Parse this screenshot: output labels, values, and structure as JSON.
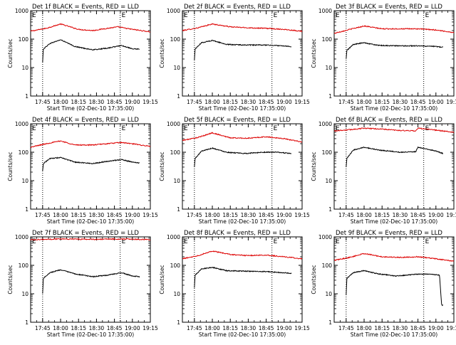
{
  "figure": {
    "xlabel": "Start Time (02-Dec-10 17:35:00)",
    "ylabel": "Counts/sec",
    "x_tick_labels": [
      "17:45",
      "18:00",
      "18:15",
      "18:30",
      "18:45",
      "19:00",
      "19:15"
    ],
    "y_tick_labels": [
      "1",
      "10",
      "100",
      "1000"
    ],
    "corner_marker_left": "E",
    "corner_marker_right": "E",
    "colors": {
      "events": "#000000",
      "lld": "#dd0000",
      "axes": "#000000",
      "background": "#ffffff"
    }
  },
  "chart_data": [
    {
      "type": "line",
      "title": "Det 1f BLACK = Events, RED = LLD",
      "xlabel": "Start Time (02-Dec-10 17:35:00)",
      "ylabel": "Counts/sec",
      "xlim": [
        17.583,
        19.25
      ],
      "ylim": [
        1,
        1000
      ],
      "yscale": "log",
      "markers": [
        17.75,
        18.83
      ],
      "series": [
        {
          "role": "lld",
          "start": 17.583,
          "end": 19.25,
          "points": [
            [
              17.583,
              190
            ],
            [
              17.8,
              240
            ],
            [
              18.0,
              340
            ],
            [
              18.25,
              220
            ],
            [
              18.45,
              200
            ],
            [
              18.6,
              230
            ],
            [
              18.8,
              270
            ],
            [
              18.95,
              230
            ],
            [
              19.25,
              180
            ]
          ]
        },
        {
          "role": "events",
          "start": 17.75,
          "end": 19.1,
          "points": [
            [
              17.75,
              15
            ],
            [
              17.76,
              45
            ],
            [
              17.85,
              70
            ],
            [
              18.0,
              95
            ],
            [
              18.2,
              55
            ],
            [
              18.45,
              42
            ],
            [
              18.65,
              48
            ],
            [
              18.85,
              60
            ],
            [
              19.0,
              45
            ],
            [
              19.1,
              45
            ]
          ]
        }
      ]
    },
    {
      "type": "line",
      "title": "Det 2f BLACK = Events, RED = LLD",
      "xlabel": "Start Time (02-Dec-10 17:35:00)",
      "ylabel": "Counts/sec",
      "xlim": [
        17.583,
        19.25
      ],
      "ylim": [
        1,
        1000
      ],
      "yscale": "log",
      "markers": [
        17.75,
        18.83
      ],
      "series": [
        {
          "role": "lld",
          "start": 17.583,
          "end": 19.25,
          "points": [
            [
              17.583,
              200
            ],
            [
              17.8,
              250
            ],
            [
              18.0,
              340
            ],
            [
              18.25,
              270
            ],
            [
              18.5,
              250
            ],
            [
              18.75,
              240
            ],
            [
              19.0,
              220
            ],
            [
              19.25,
              190
            ]
          ]
        },
        {
          "role": "events",
          "start": 17.75,
          "end": 19.1,
          "points": [
            [
              17.75,
              18
            ],
            [
              17.76,
              45
            ],
            [
              17.85,
              75
            ],
            [
              18.0,
              90
            ],
            [
              18.2,
              65
            ],
            [
              18.5,
              62
            ],
            [
              18.75,
              62
            ],
            [
              19.0,
              58
            ],
            [
              19.1,
              55
            ]
          ]
        }
      ]
    },
    {
      "type": "line",
      "title": "Det 3f BLACK = Events, RED = LLD",
      "xlabel": "Start Time (02-Dec-10 17:35:00)",
      "ylabel": "Counts/sec",
      "xlim": [
        17.583,
        19.25
      ],
      "ylim": [
        1,
        1000
      ],
      "yscale": "log",
      "markers": [
        17.75,
        18.83
      ],
      "series": [
        {
          "role": "lld",
          "start": 17.583,
          "end": 19.25,
          "points": [
            [
              17.583,
              160
            ],
            [
              17.8,
              220
            ],
            [
              18.0,
              290
            ],
            [
              18.25,
              230
            ],
            [
              18.5,
              230
            ],
            [
              18.75,
              230
            ],
            [
              19.0,
              210
            ],
            [
              19.25,
              170
            ]
          ]
        },
        {
          "role": "events",
          "start": 17.75,
          "end": 19.1,
          "points": [
            [
              17.75,
              20
            ],
            [
              17.76,
              40
            ],
            [
              17.85,
              65
            ],
            [
              18.0,
              75
            ],
            [
              18.2,
              60
            ],
            [
              18.5,
              58
            ],
            [
              18.75,
              58
            ],
            [
              19.0,
              55
            ],
            [
              19.1,
              52
            ]
          ]
        }
      ]
    },
    {
      "type": "line",
      "title": "Det 4f BLACK = Events, RED = LLD",
      "xlabel": "Start Time (02-Dec-10 17:35:00)",
      "ylabel": "Counts/sec",
      "xlim": [
        17.583,
        19.25
      ],
      "ylim": [
        1,
        1000
      ],
      "yscale": "log",
      "markers": [
        17.75,
        18.83
      ],
      "series": [
        {
          "role": "lld",
          "start": 17.583,
          "end": 19.25,
          "points": [
            [
              17.583,
              150
            ],
            [
              17.8,
              200
            ],
            [
              18.0,
              250
            ],
            [
              18.2,
              180
            ],
            [
              18.45,
              180
            ],
            [
              18.65,
              200
            ],
            [
              18.85,
              220
            ],
            [
              19.05,
              190
            ],
            [
              19.25,
              160
            ]
          ]
        },
        {
          "role": "events",
          "start": 17.75,
          "end": 19.1,
          "points": [
            [
              17.75,
              22
            ],
            [
              17.76,
              40
            ],
            [
              17.85,
              60
            ],
            [
              18.0,
              65
            ],
            [
              18.2,
              45
            ],
            [
              18.45,
              40
            ],
            [
              18.65,
              48
            ],
            [
              18.85,
              55
            ],
            [
              19.0,
              45
            ],
            [
              19.1,
              42
            ]
          ]
        }
      ]
    },
    {
      "type": "line",
      "title": "Det 5f BLACK = Events, RED = LLD",
      "xlabel": "Start Time (02-Dec-10 17:35:00)",
      "ylabel": "Counts/sec",
      "xlim": [
        17.583,
        19.25
      ],
      "ylim": [
        1,
        1000
      ],
      "yscale": "log",
      "markers": [
        17.75,
        18.83
      ],
      "series": [
        {
          "role": "lld",
          "start": 17.583,
          "end": 19.25,
          "points": [
            [
              17.583,
              260
            ],
            [
              17.8,
              330
            ],
            [
              18.0,
              480
            ],
            [
              18.25,
              320
            ],
            [
              18.5,
              310
            ],
            [
              18.75,
              350
            ],
            [
              19.0,
              300
            ],
            [
              19.25,
              230
            ]
          ]
        },
        {
          "role": "events",
          "start": 17.75,
          "end": 19.1,
          "points": [
            [
              17.75,
              30
            ],
            [
              17.76,
              60
            ],
            [
              17.85,
              110
            ],
            [
              18.0,
              140
            ],
            [
              18.2,
              100
            ],
            [
              18.45,
              90
            ],
            [
              18.7,
              100
            ],
            [
              18.9,
              100
            ],
            [
              19.1,
              90
            ]
          ]
        }
      ]
    },
    {
      "type": "line",
      "title": "Det 6f BLACK = Events, RED = LLD",
      "xlabel": "Start Time (02-Dec-10 17:35:00)",
      "ylabel": "Counts/sec",
      "xlim": [
        17.583,
        19.25
      ],
      "ylim": [
        1,
        1000
      ],
      "yscale": "log",
      "markers": [
        17.75,
        18.83
      ],
      "series": [
        {
          "role": "lld",
          "start": 17.583,
          "end": 19.25,
          "points": [
            [
              17.583,
              560
            ],
            [
              17.8,
              620
            ],
            [
              18.0,
              700
            ],
            [
              18.25,
              650
            ],
            [
              18.5,
              580
            ],
            [
              18.72,
              560
            ],
            [
              18.75,
              700
            ],
            [
              19.0,
              600
            ],
            [
              19.25,
              500
            ]
          ]
        },
        {
          "role": "events",
          "start": 17.75,
          "end": 19.1,
          "points": [
            [
              17.75,
              30
            ],
            [
              17.76,
              60
            ],
            [
              17.85,
              120
            ],
            [
              18.0,
              150
            ],
            [
              18.2,
              120
            ],
            [
              18.5,
              100
            ],
            [
              18.72,
              105
            ],
            [
              18.75,
              150
            ],
            [
              19.0,
              110
            ],
            [
              19.1,
              90
            ]
          ]
        }
      ]
    },
    {
      "type": "line",
      "title": "Det 7f BLACK = Events, RED = LLD",
      "xlabel": "Start Time (02-Dec-10 17:35:00)",
      "ylabel": "Counts/sec",
      "xlim": [
        17.583,
        19.25
      ],
      "ylim": [
        1,
        1000
      ],
      "yscale": "log",
      "markers": [
        17.75,
        18.83
      ],
      "series": [
        {
          "role": "lld",
          "start": 17.583,
          "end": 19.25,
          "points": [
            [
              17.583,
              800
            ],
            [
              17.8,
              820
            ],
            [
              18.0,
              850
            ],
            [
              18.25,
              830
            ],
            [
              18.5,
              820
            ],
            [
              18.75,
              840
            ],
            [
              19.0,
              830
            ],
            [
              19.25,
              800
            ]
          ]
        },
        {
          "role": "events",
          "start": 17.75,
          "end": 19.1,
          "points": [
            [
              17.75,
              10
            ],
            [
              17.76,
              35
            ],
            [
              17.85,
              55
            ],
            [
              18.0,
              70
            ],
            [
              18.2,
              50
            ],
            [
              18.45,
              40
            ],
            [
              18.65,
              45
            ],
            [
              18.85,
              55
            ],
            [
              19.0,
              42
            ],
            [
              19.1,
              40
            ]
          ]
        }
      ]
    },
    {
      "type": "line",
      "title": "Det 8f BLACK = Events, RED = LLD",
      "xlabel": "Start Time (02-Dec-10 17:35:00)",
      "ylabel": "Counts/sec",
      "xlim": [
        17.583,
        19.25
      ],
      "ylim": [
        1,
        1000
      ],
      "yscale": "log",
      "markers": [
        17.75,
        18.83
      ],
      "series": [
        {
          "role": "lld",
          "start": 17.583,
          "end": 19.25,
          "points": [
            [
              17.583,
              170
            ],
            [
              17.8,
              220
            ],
            [
              18.0,
              320
            ],
            [
              18.25,
              240
            ],
            [
              18.5,
              220
            ],
            [
              18.75,
              230
            ],
            [
              19.0,
              200
            ],
            [
              19.25,
              170
            ]
          ]
        },
        {
          "role": "events",
          "start": 17.75,
          "end": 19.1,
          "points": [
            [
              17.75,
              16
            ],
            [
              17.76,
              45
            ],
            [
              17.85,
              75
            ],
            [
              18.0,
              85
            ],
            [
              18.2,
              65
            ],
            [
              18.5,
              62
            ],
            [
              18.75,
              60
            ],
            [
              19.0,
              55
            ],
            [
              19.1,
              52
            ]
          ]
        }
      ]
    },
    {
      "type": "line",
      "title": "Det 9f BLACK = Events, RED = LLD",
      "xlabel": "Start Time (02-Dec-10 17:35:00)",
      "ylabel": "Counts/sec",
      "xlim": [
        17.583,
        19.25
      ],
      "ylim": [
        1,
        1000
      ],
      "yscale": "log",
      "markers": [
        17.75,
        18.83
      ],
      "series": [
        {
          "role": "lld",
          "start": 17.583,
          "end": 19.25,
          "points": [
            [
              17.583,
              150
            ],
            [
              17.8,
              190
            ],
            [
              18.0,
              260
            ],
            [
              18.25,
              200
            ],
            [
              18.5,
              190
            ],
            [
              18.75,
              200
            ],
            [
              19.0,
              170
            ],
            [
              19.25,
              140
            ]
          ]
        },
        {
          "role": "events",
          "start": 17.75,
          "end": 19.1,
          "points": [
            [
              17.75,
              9
            ],
            [
              17.76,
              35
            ],
            [
              17.85,
              55
            ],
            [
              18.0,
              65
            ],
            [
              18.2,
              50
            ],
            [
              18.45,
              42
            ],
            [
              18.7,
              48
            ],
            [
              18.9,
              50
            ],
            [
              19.05,
              45
            ],
            [
              19.08,
              4
            ]
          ]
        }
      ]
    }
  ]
}
